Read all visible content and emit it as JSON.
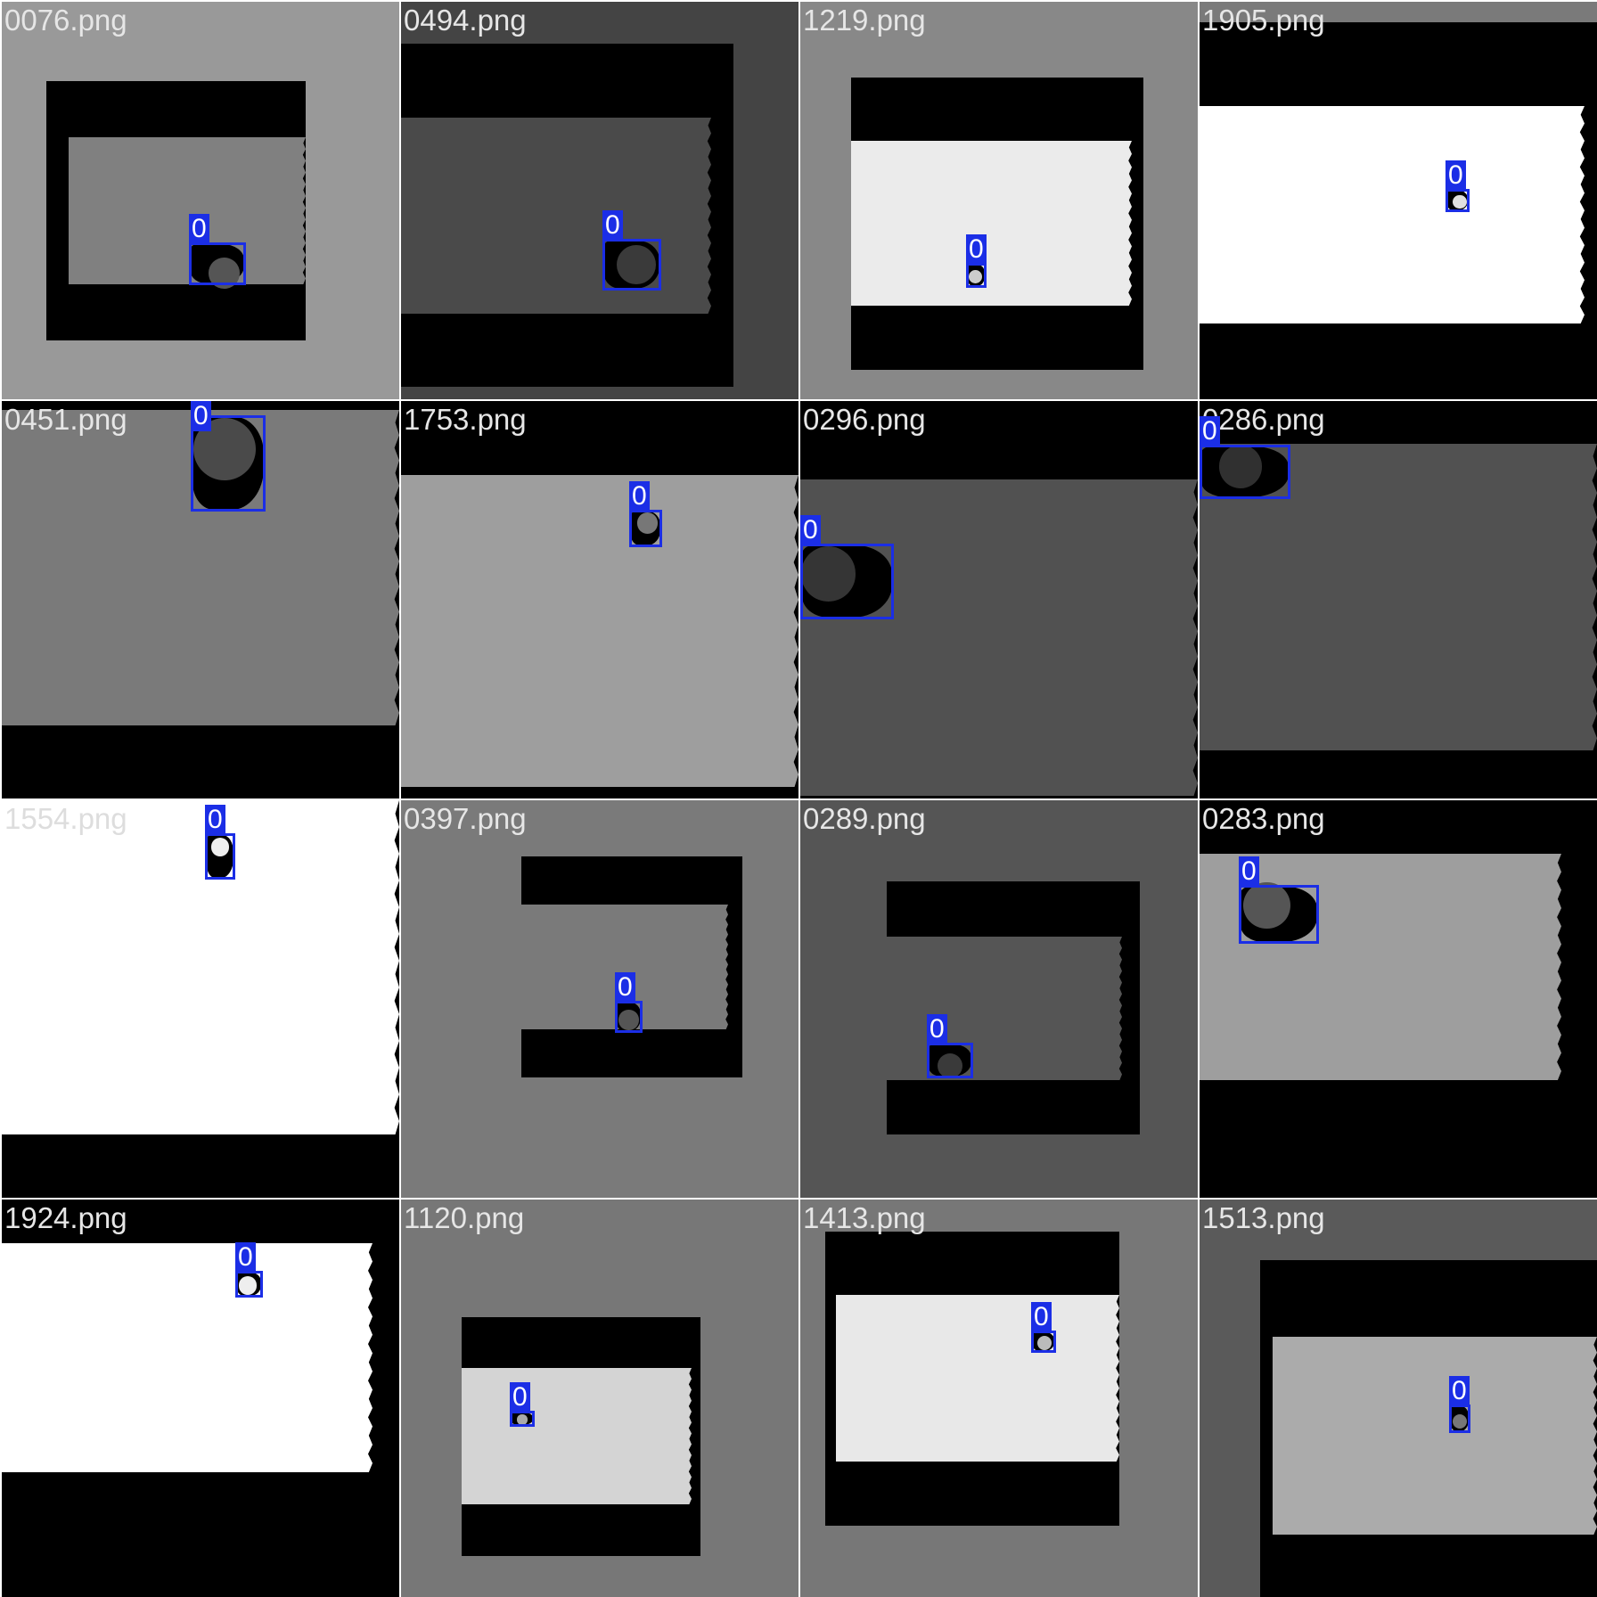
{
  "colors": {
    "box": "#1b2ee6",
    "label_text": "#ffffff"
  },
  "tiles": [
    {
      "file": "0076.png",
      "label": "0",
      "bg": "#999999",
      "outer": "#000000",
      "inner": "#808080",
      "disc": "#555555",
      "text": "#e6e6e6"
    },
    {
      "file": "0494.png",
      "label": "0",
      "bg": "#444444",
      "outer": "#000000",
      "inner": "#4a4a4a",
      "disc": "#3a3a3a",
      "text": "#e6e6e6"
    },
    {
      "file": "1219.png",
      "label": "0",
      "bg": "#888888",
      "outer": "#000000",
      "inner": "#ebebeb",
      "disc": "#cccccc",
      "text": "#e6e6e6"
    },
    {
      "file": "1905.png",
      "label": "0",
      "bg": "#7a7a7a",
      "outer": "#000000",
      "inner": "#ffffff",
      "disc": "#e0e0e0",
      "text": "#e6e6e6"
    },
    {
      "file": "0451.png",
      "label": "0",
      "bg": "#7a7a7a",
      "outer": "#000000",
      "inner": "#7a7a7a",
      "disc": "#4a4a4a",
      "text": "#e6e6e6"
    },
    {
      "file": "1753.png",
      "label": "0",
      "bg": "#000000",
      "outer": "#000000",
      "inner": "#9e9e9e",
      "disc": "#777777",
      "text": "#e6e6e6"
    },
    {
      "file": "0296.png",
      "label": "0",
      "bg": "#000000",
      "outer": "#000000",
      "inner": "#515151",
      "disc": "#353535",
      "text": "#e6e6e6"
    },
    {
      "file": "0286.png",
      "label": "0",
      "bg": "#000000",
      "outer": "#000000",
      "inner": "#515151",
      "disc": "#303030",
      "text": "#e6e6e6"
    },
    {
      "file": "1554.png",
      "label": "0",
      "bg": "#ffffff",
      "outer": "#000000",
      "inner": "#ffffff",
      "disc": "#eeeeee",
      "text": "#dddddd"
    },
    {
      "file": "0397.png",
      "label": "0",
      "bg": "#7a7a7a",
      "outer": "#000000",
      "inner": "#7a7a7a",
      "disc": "#555555",
      "text": "#e6e6e6"
    },
    {
      "file": "0289.png",
      "label": "0",
      "bg": "#555555",
      "outer": "#000000",
      "inner": "#555555",
      "disc": "#3a3a3a",
      "text": "#e6e6e6"
    },
    {
      "file": "0283.png",
      "label": "0",
      "bg": "#000000",
      "outer": "#000000",
      "inner": "#9e9e9e",
      "disc": "#555555",
      "text": "#e6e6e6"
    },
    {
      "file": "1924.png",
      "label": "0",
      "bg": "#999999",
      "outer": "#000000",
      "inner": "#ffffff",
      "disc": "#eeeeee",
      "text": "#e6e6e6"
    },
    {
      "file": "1120.png",
      "label": "0",
      "bg": "#777777",
      "outer": "#000000",
      "inner": "#d4d4d4",
      "disc": "#aaaaaa",
      "text": "#e6e6e6"
    },
    {
      "file": "1413.png",
      "label": "0",
      "bg": "#777777",
      "outer": "#000000",
      "inner": "#e8e8e8",
      "disc": "#bbbbbb",
      "text": "#e6e6e6"
    },
    {
      "file": "1513.png",
      "label": "0",
      "bg": "#5a5a5a",
      "outer": "#000000",
      "inner": "#ababab",
      "disc": "#777777",
      "text": "#e6e6e6"
    }
  ]
}
